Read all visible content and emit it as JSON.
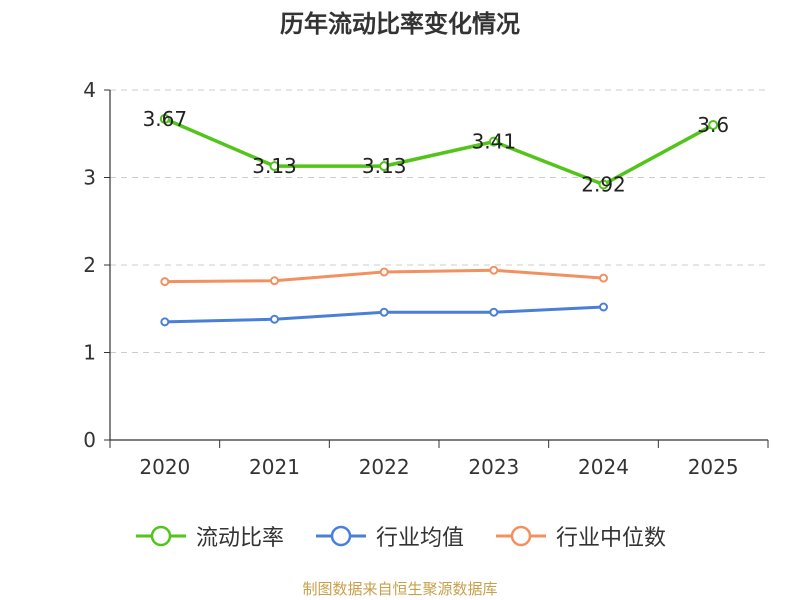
{
  "chart_data": {
    "type": "line",
    "title": "历年流动比率变化情况",
    "categories": [
      "2020",
      "2021",
      "2022",
      "2023",
      "2024",
      "2025"
    ],
    "series": [
      {
        "name": "流动比率",
        "color": "#52c41a",
        "values": [
          3.67,
          3.13,
          3.13,
          3.41,
          2.92,
          3.6
        ],
        "labels": [
          "3.67",
          "3.13",
          "3.13",
          "3.41",
          "2.92",
          "3.6"
        ]
      },
      {
        "name": "行业均值",
        "color": "#4a7fd9",
        "values": [
          1.35,
          1.38,
          1.46,
          1.46,
          1.52,
          null
        ]
      },
      {
        "name": "行业中位数",
        "color": "#f2905f",
        "values": [
          1.81,
          1.82,
          1.92,
          1.94,
          1.85,
          null
        ]
      }
    ],
    "yticks": [
      "0",
      "1",
      "2",
      "3",
      "4"
    ],
    "ylim": [
      0,
      4
    ],
    "grid": true,
    "legend_position": "bottom",
    "source": "制图数据来自恒生聚源数据库"
  }
}
